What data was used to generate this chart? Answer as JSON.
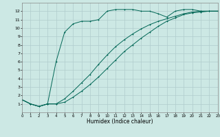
{
  "xlabel": "Humidex (Indice chaleur)",
  "xlim": [
    0,
    23
  ],
  "ylim": [
    0,
    13
  ],
  "xticks": [
    0,
    1,
    2,
    3,
    4,
    5,
    6,
    7,
    8,
    9,
    10,
    11,
    12,
    13,
    14,
    15,
    16,
    17,
    18,
    19,
    20,
    21,
    22,
    23
  ],
  "yticks": [
    1,
    2,
    3,
    4,
    5,
    6,
    7,
    8,
    9,
    10,
    11,
    12
  ],
  "bg_color": "#cce8e4",
  "grid_color": "#b0cccc",
  "line_color": "#006655",
  "curve1_x": [
    0,
    1,
    2,
    3,
    4,
    5,
    6,
    7,
    8,
    9,
    10,
    11,
    12,
    13,
    14,
    15,
    16,
    17,
    18,
    19,
    20,
    21,
    22,
    23
  ],
  "curve1_y": [
    1.5,
    1.0,
    0.7,
    1.0,
    6.0,
    9.5,
    10.5,
    10.8,
    10.8,
    11.0,
    12.0,
    12.2,
    12.2,
    12.2,
    12.0,
    12.0,
    11.7,
    11.3,
    12.0,
    12.2,
    12.2,
    12.0,
    12.0,
    12.0
  ],
  "curve2_x": [
    0,
    1,
    2,
    3,
    4,
    5,
    6,
    7,
    8,
    9,
    10,
    11,
    12,
    13,
    14,
    15,
    16,
    17,
    18,
    19,
    20,
    21,
    22,
    23
  ],
  "curve2_y": [
    1.5,
    1.0,
    0.7,
    1.0,
    1.0,
    1.2,
    1.8,
    2.5,
    3.3,
    4.2,
    5.2,
    6.2,
    7.2,
    8.0,
    8.8,
    9.5,
    10.2,
    10.8,
    11.2,
    11.6,
    11.8,
    11.9,
    12.0,
    12.0
  ],
  "curve3_x": [
    0,
    1,
    2,
    3,
    4,
    5,
    6,
    7,
    8,
    9,
    10,
    11,
    12,
    13,
    14,
    15,
    16,
    17,
    18,
    19,
    20,
    21,
    22,
    23
  ],
  "curve3_y": [
    1.5,
    1.0,
    0.7,
    1.0,
    1.0,
    1.6,
    2.5,
    3.5,
    4.5,
    5.7,
    6.8,
    7.8,
    8.6,
    9.3,
    9.9,
    10.4,
    10.8,
    11.1,
    11.4,
    11.7,
    11.9,
    12.0,
    12.0,
    12.0
  ]
}
